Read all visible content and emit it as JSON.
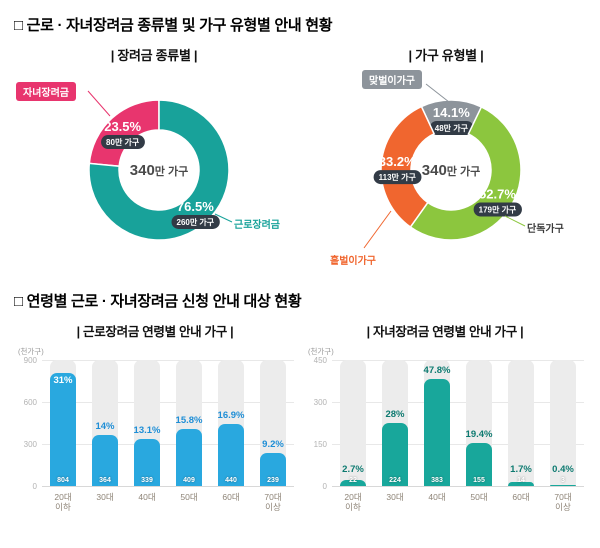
{
  "page": {
    "section1_title": "□ 근로 · 자녀장려금 종류별 및 가구 유형별 안내 현황",
    "section2_title": "□ 연령별 근로 · 자녀장려금 신청 안내 대상 현황"
  },
  "chart_data": [
    {
      "id": "incentive-type-donut",
      "type": "pie",
      "title": "| 장려금 종류별 |",
      "center_label": "340만 가구",
      "slices": [
        {
          "label": "자녀장려금",
          "pct": 23.5,
          "pct_text": "23.5%",
          "count": "80만 가구",
          "color": "#e8356e"
        },
        {
          "label": "근로장려금",
          "pct": 76.5,
          "pct_text": "76.5%",
          "count": "260만 가구",
          "color": "#18a29a"
        }
      ]
    },
    {
      "id": "household-type-donut",
      "type": "pie",
      "title": "| 가구 유형별 |",
      "center_label": "340만 가구",
      "slices": [
        {
          "label": "맞벌이가구",
          "pct": 14.1,
          "pct_text": "14.1%",
          "count": "48만 가구",
          "color": "#8d949b"
        },
        {
          "label": "단독가구",
          "pct": 52.7,
          "pct_text": "52.7%",
          "count": "179만 가구",
          "color": "#8cc63e"
        },
        {
          "label": "홑벌이가구",
          "pct": 33.2,
          "pct_text": "33.2%",
          "count": "113만 가구",
          "color": "#f0662f"
        }
      ]
    },
    {
      "id": "work-incentive-by-age",
      "type": "bar",
      "title": "| 근로장려금 연령별 안내 가구 |",
      "unit": "(천가구)",
      "categories": [
        "20대\n이하",
        "30대",
        "40대",
        "50대",
        "60대",
        "70대\n이상"
      ],
      "values": [
        804,
        364,
        339,
        409,
        440,
        239
      ],
      "pct_labels": [
        "31%",
        "14%",
        "13.1%",
        "15.8%",
        "16.9%",
        "9.2%"
      ],
      "ylim": [
        0,
        900
      ],
      "yticks": [
        0,
        300,
        600,
        900
      ],
      "bar_color": "#29a8df",
      "pct_label_color": "#1e8ed6",
      "badge_color": "#323b46"
    },
    {
      "id": "child-incentive-by-age",
      "type": "bar",
      "title": "| 자녀장려금 연령별 안내 가구 |",
      "unit": "(천가구)",
      "categories": [
        "20대\n이하",
        "30대",
        "40대",
        "50대",
        "60대",
        "70대\n이상"
      ],
      "values": [
        22,
        224,
        383,
        155,
        14,
        3
      ],
      "pct_labels": [
        "2.7%",
        "28%",
        "47.8%",
        "19.4%",
        "1.7%",
        "0.4%"
      ],
      "ylim": [
        0,
        450
      ],
      "yticks": [
        0,
        150,
        300,
        450
      ],
      "bar_color": "#18a79b",
      "pct_label_color": "#0d7a70",
      "badge_color": "#323b46"
    }
  ]
}
